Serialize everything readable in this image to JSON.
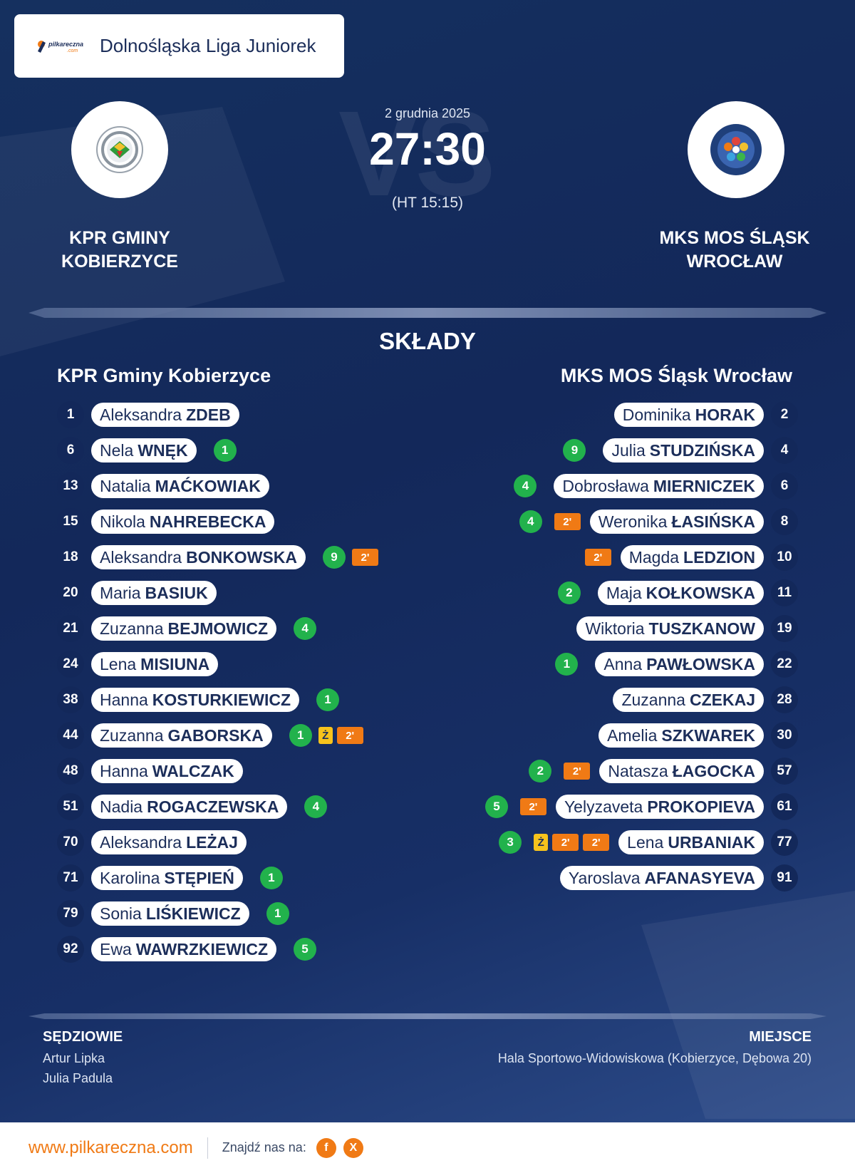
{
  "header": {
    "league": "Dolnośląska Liga Juniorek",
    "logo_text": "pilkareczna",
    "logo_sub": ".com"
  },
  "match": {
    "date": "2 grudnia 2025",
    "score": "27:30",
    "halftime": "(HT 15:15)",
    "vs": "VS"
  },
  "home_team": {
    "name_line1": "KPR GMINY",
    "name_line2": "KOBIERZYCE",
    "lineup_title": "KPR Gminy Kobierzyce"
  },
  "away_team": {
    "name_line1": "MKS MOS ŚLĄSK",
    "name_line2": "WROCŁAW",
    "lineup_title": "MKS MOS Śląsk Wrocław"
  },
  "section_title": "SKŁADY",
  "home_players": [
    {
      "num": "1",
      "first": "Aleksandra",
      "last": "ZDEB",
      "goals": "",
      "badges": []
    },
    {
      "num": "6",
      "first": "Nela",
      "last": "WNĘK",
      "goals": "1",
      "badges": []
    },
    {
      "num": "13",
      "first": "Natalia",
      "last": "MAĆKOWIAK",
      "goals": "",
      "badges": []
    },
    {
      "num": "15",
      "first": "Nikola",
      "last": "NAHREBECKA",
      "goals": "",
      "badges": []
    },
    {
      "num": "18",
      "first": "Aleksandra",
      "last": "BONKOWSKA",
      "goals": "9",
      "badges": [
        "2'"
      ]
    },
    {
      "num": "20",
      "first": "Maria",
      "last": "BASIUK",
      "goals": "",
      "badges": []
    },
    {
      "num": "21",
      "first": "Zuzanna",
      "last": "BEJMOWICZ",
      "goals": "4",
      "badges": []
    },
    {
      "num": "24",
      "first": "Lena",
      "last": "MISIUNA",
      "goals": "",
      "badges": []
    },
    {
      "num": "38",
      "first": "Hanna",
      "last": "KOSTURKIEWICZ",
      "goals": "1",
      "badges": []
    },
    {
      "num": "44",
      "first": "Zuzanna",
      "last": "GABORSKA",
      "goals": "1",
      "badges": [
        "Ż",
        "2'"
      ]
    },
    {
      "num": "48",
      "first": "Hanna",
      "last": "WALCZAK",
      "goals": "",
      "badges": []
    },
    {
      "num": "51",
      "first": "Nadia",
      "last": "ROGACZEWSKA",
      "goals": "4",
      "badges": []
    },
    {
      "num": "70",
      "first": "Aleksandra",
      "last": "LEŻAJ",
      "goals": "",
      "badges": []
    },
    {
      "num": "71",
      "first": "Karolina",
      "last": "STĘPIEŃ",
      "goals": "1",
      "badges": []
    },
    {
      "num": "79",
      "first": "Sonia",
      "last": "LIŚKIEWICZ",
      "goals": "1",
      "badges": []
    },
    {
      "num": "92",
      "first": "Ewa",
      "last": "WAWRZKIEWICZ",
      "goals": "5",
      "badges": []
    }
  ],
  "away_players": [
    {
      "num": "2",
      "first": "Dominika",
      "last": "HORAK",
      "goals": "",
      "badges": []
    },
    {
      "num": "4",
      "first": "Julia",
      "last": "STUDZIŃSKA",
      "goals": "9",
      "badges": []
    },
    {
      "num": "6",
      "first": "Dobrosława",
      "last": "MIERNICZEK",
      "goals": "4",
      "badges": []
    },
    {
      "num": "8",
      "first": "Weronika",
      "last": "ŁASIŃSKA",
      "goals": "4",
      "badges": [
        "2'"
      ]
    },
    {
      "num": "10",
      "first": "Magda",
      "last": "LEDZION",
      "goals": "",
      "badges": [
        "2'"
      ]
    },
    {
      "num": "11",
      "first": "Maja",
      "last": "KOŁKOWSKA",
      "goals": "2",
      "badges": []
    },
    {
      "num": "19",
      "first": "Wiktoria",
      "last": "TUSZKANOW",
      "goals": "",
      "badges": []
    },
    {
      "num": "22",
      "first": "Anna",
      "last": "PAWŁOWSKA",
      "goals": "1",
      "badges": []
    },
    {
      "num": "28",
      "first": "Zuzanna",
      "last": "CZEKAJ",
      "goals": "",
      "badges": []
    },
    {
      "num": "30",
      "first": "Amelia",
      "last": "SZKWAREK",
      "goals": "",
      "badges": []
    },
    {
      "num": "57",
      "first": "Natasza",
      "last": "ŁAGOCKA",
      "goals": "2",
      "badges": [
        "2'"
      ]
    },
    {
      "num": "61",
      "first": "Yelyzaveta",
      "last": "PROKOPIEVA",
      "goals": "5",
      "badges": [
        "2'"
      ]
    },
    {
      "num": "77",
      "first": "Lena",
      "last": "URBANIAK",
      "goals": "3",
      "badges": [
        "Ż",
        "2'",
        "2'"
      ]
    },
    {
      "num": "91",
      "first": "Yaroslava",
      "last": "AFANASYEVA",
      "goals": "",
      "badges": []
    }
  ],
  "officials": {
    "title": "SĘDZIOWIE",
    "names": [
      "Artur Lipka",
      "Julia Padula"
    ]
  },
  "venue": {
    "title": "MIEJSCE",
    "name": "Hala Sportowo-Widowiskowa (Kobierzyce, Dębowa 20)"
  },
  "footer": {
    "url": "www.pilkareczna.com",
    "find_us": "Znajdź nas na:",
    "facebook": "f",
    "x": "X"
  },
  "colors": {
    "accent": "#f07a15",
    "goal": "#22b24c",
    "yellow": "#f7c31c",
    "navy": "#13285a"
  }
}
